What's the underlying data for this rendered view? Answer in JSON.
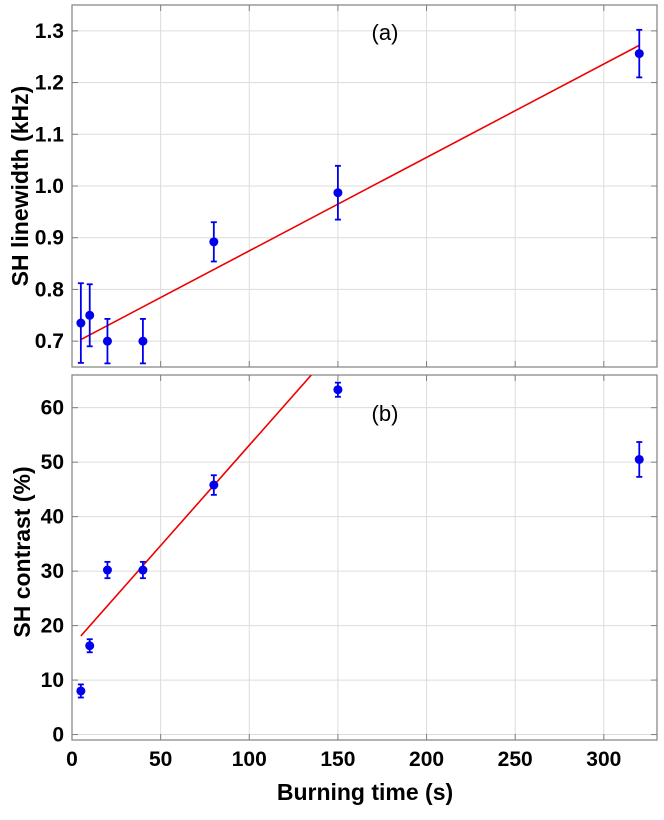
{
  "chart_data": [
    {
      "type": "scatter",
      "panel_label": "(a)",
      "ylabel": "SH linewidth (kHz)",
      "xlabel": "",
      "xlim": [
        0,
        330
      ],
      "ylim": [
        0.65,
        1.35
      ],
      "x_ticks": [
        0,
        50,
        100,
        150,
        200,
        250,
        300
      ],
      "y_ticks": [
        0.7,
        0.8,
        0.9,
        1.0,
        1.1,
        1.2,
        1.3
      ],
      "y_tick_labels": [
        "0.7",
        "0.8",
        "0.9",
        "1.0",
        "1.1",
        "1.2",
        "1.3"
      ],
      "grid": true,
      "series": [
        {
          "x": [
            5,
            10,
            20,
            40,
            80,
            150,
            320
          ],
          "y": [
            0.735,
            0.75,
            0.7,
            0.7,
            0.892,
            0.987,
            1.256
          ],
          "yerr": [
            0.077,
            0.06,
            0.043,
            0.043,
            0.038,
            0.052,
            0.046
          ],
          "color": "#0000ee"
        }
      ],
      "fit_line": {
        "x": [
          5,
          320
        ],
        "y": [
          0.703,
          1.272
        ],
        "color": "#ee0000"
      }
    },
    {
      "type": "scatter",
      "panel_label": "(b)",
      "ylabel": "SH contrast (%)",
      "xlabel": "Burning time (s)",
      "xlim": [
        0,
        330
      ],
      "ylim": [
        -1,
        66
      ],
      "x_ticks": [
        0,
        50,
        100,
        150,
        200,
        250,
        300
      ],
      "y_ticks": [
        0,
        10,
        20,
        30,
        40,
        50,
        60
      ],
      "y_tick_labels": [
        "0",
        "10",
        "20",
        "30",
        "40",
        "50",
        "60"
      ],
      "grid": true,
      "series": [
        {
          "x": [
            5,
            10,
            20,
            40,
            80,
            150,
            320
          ],
          "y": [
            8,
            16.3,
            30.2,
            30.2,
            45.8,
            63.3,
            50.5
          ],
          "yerr": [
            1.2,
            1.2,
            1.5,
            1.5,
            1.8,
            1.3,
            3.2
          ],
          "color": "#0000ee"
        }
      ],
      "fit_line": {
        "x": [
          5,
          135
        ],
        "y": [
          18.1,
          66
        ],
        "color": "#ee0000"
      }
    }
  ]
}
